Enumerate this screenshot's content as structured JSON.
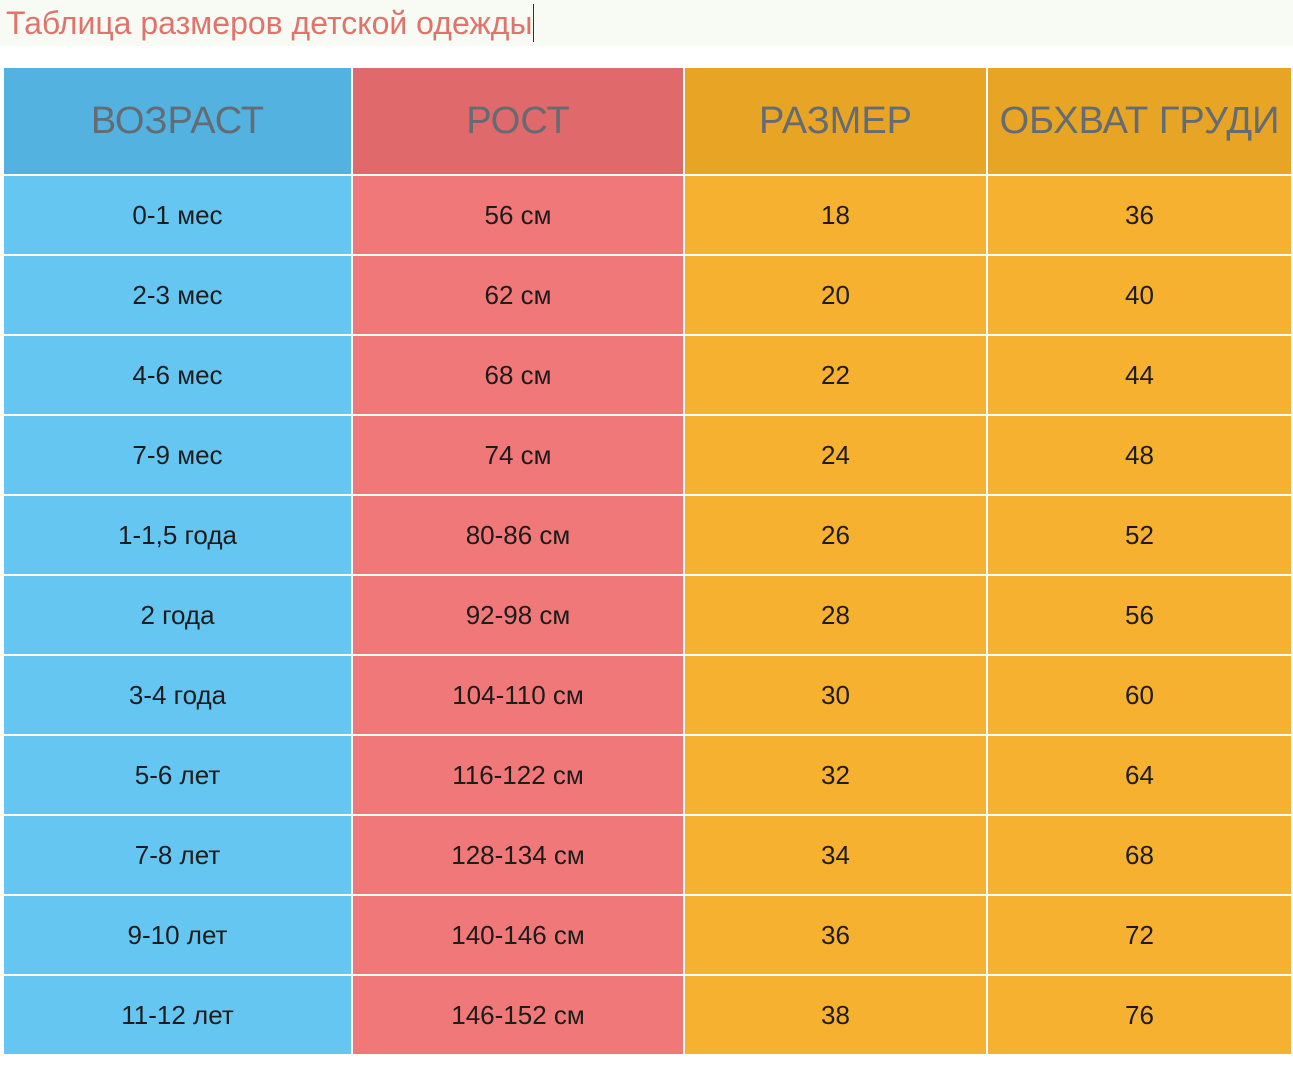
{
  "document": {
    "title": "Таблица размеров детской одежды"
  },
  "table": {
    "headers": [
      "ВОЗРАСТ",
      "РОСТ",
      "РАЗМЕР",
      "ОБХВАТ ГРУДИ"
    ],
    "rows": [
      [
        "0-1 мес",
        "56 см",
        "18",
        "36"
      ],
      [
        "2-3 мес",
        "62 см",
        "20",
        "40"
      ],
      [
        "4-6 мес",
        "68 см",
        "22",
        "44"
      ],
      [
        "7-9 мес",
        "74 см",
        "24",
        "48"
      ],
      [
        "1-1,5 года",
        "80-86 см",
        "26",
        "52"
      ],
      [
        "2 года",
        "92-98 см",
        "28",
        "56"
      ],
      [
        "3-4 года",
        "104-110 см",
        "30",
        "60"
      ],
      [
        "5-6 лет",
        "116-122 см",
        "32",
        "64"
      ],
      [
        "7-8 лет",
        "128-134 см",
        "34",
        "68"
      ],
      [
        "9-10 лет",
        "140-146 см",
        "36",
        "72"
      ],
      [
        "11-12 лет",
        "146-152 см",
        "38",
        "76"
      ]
    ]
  },
  "colors": {
    "title_text": "#e0736c",
    "age_column": "#66c6f2",
    "height_column": "#f07878",
    "size_column": "#f6b130",
    "chest_column": "#f6b130",
    "header_text": "#636b73"
  }
}
